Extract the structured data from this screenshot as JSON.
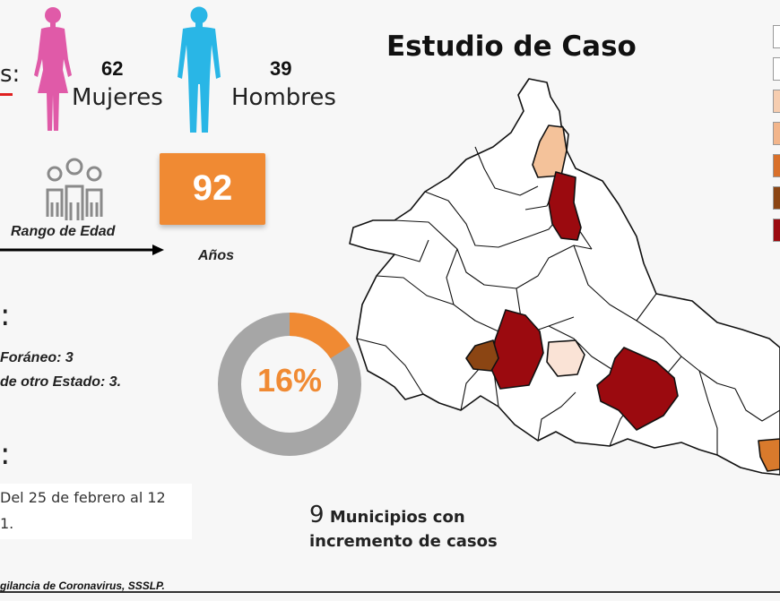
{
  "header": {
    "left_cut_label": "s:",
    "title": "Estudio de Caso"
  },
  "stats": {
    "women_count": "62",
    "women_label": "Mujeres",
    "men_count": "39",
    "men_label": "Hombres",
    "age_range_label": "Rango de Edad",
    "age_value": "92",
    "age_unit": "Años"
  },
  "origin": {
    "colon_mark": ":",
    "foreign_line": "Foráneo: 3",
    "other_state_line": "de otro Estado: 3.",
    "donut_percent": "16%",
    "donut_fraction": 0.16
  },
  "period": {
    "colon_mark": ":",
    "line1": "Del 25 de febrero al 12",
    "line2": "1."
  },
  "municipios": {
    "count": "9",
    "line1": "Municipios con",
    "line2": "incremento de casos"
  },
  "footer": {
    "source": "gilancia de Coronavirus, SSSLP."
  },
  "colors": {
    "women": "#e05aa8",
    "men": "#29b6e6",
    "accent_orange": "#f08a33",
    "donut_gray": "#a6a6a6",
    "map_dark_red": "#9b0a0f",
    "map_brown": "#8b4513",
    "map_peach": "#f4c29a",
    "map_light": "#fae3d6",
    "map_orange": "#d97a2c"
  },
  "legend": {
    "swatches": [
      "#ffffff",
      "#ffffff",
      "#f6cdb0",
      "#f2b58b",
      "#d9702a",
      "#8b4513",
      "#9b0a0f"
    ]
  }
}
